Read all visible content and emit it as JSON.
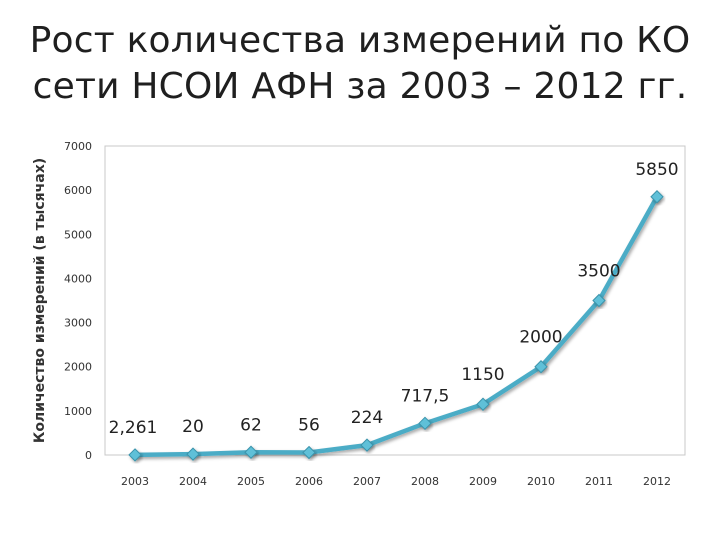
{
  "slide": {
    "title_line1": "Рост количества измерений по КО",
    "title_line2": "сети НСОИ АФН за 2003 – 2012 гг."
  },
  "chart_data": {
    "type": "line",
    "title": "Рост количества измерений по КО сети НСОИ АФН за 2003 – 2012 гг.",
    "xlabel": "",
    "ylabel": "Количество измерений (в тысячах)",
    "categories": [
      "2003",
      "2004",
      "2005",
      "2006",
      "2007",
      "2008",
      "2009",
      "2010",
      "2011",
      "2012"
    ],
    "series": [
      {
        "values": [
          2.261,
          20,
          62,
          56,
          224,
          717.5,
          1150,
          2000,
          3500,
          5850
        ],
        "labels": [
          "2,261",
          "20",
          "62",
          "56",
          "224",
          "717,5",
          "1150",
          "2000",
          "3500",
          "5850"
        ],
        "color": "#4BACC6",
        "marker": "diamond"
      }
    ],
    "ylim": [
      0,
      7000
    ],
    "yticks": [
      0,
      1000,
      2000,
      3000,
      4000,
      5000,
      6000,
      7000
    ],
    "grid": false,
    "legend": "none"
  }
}
